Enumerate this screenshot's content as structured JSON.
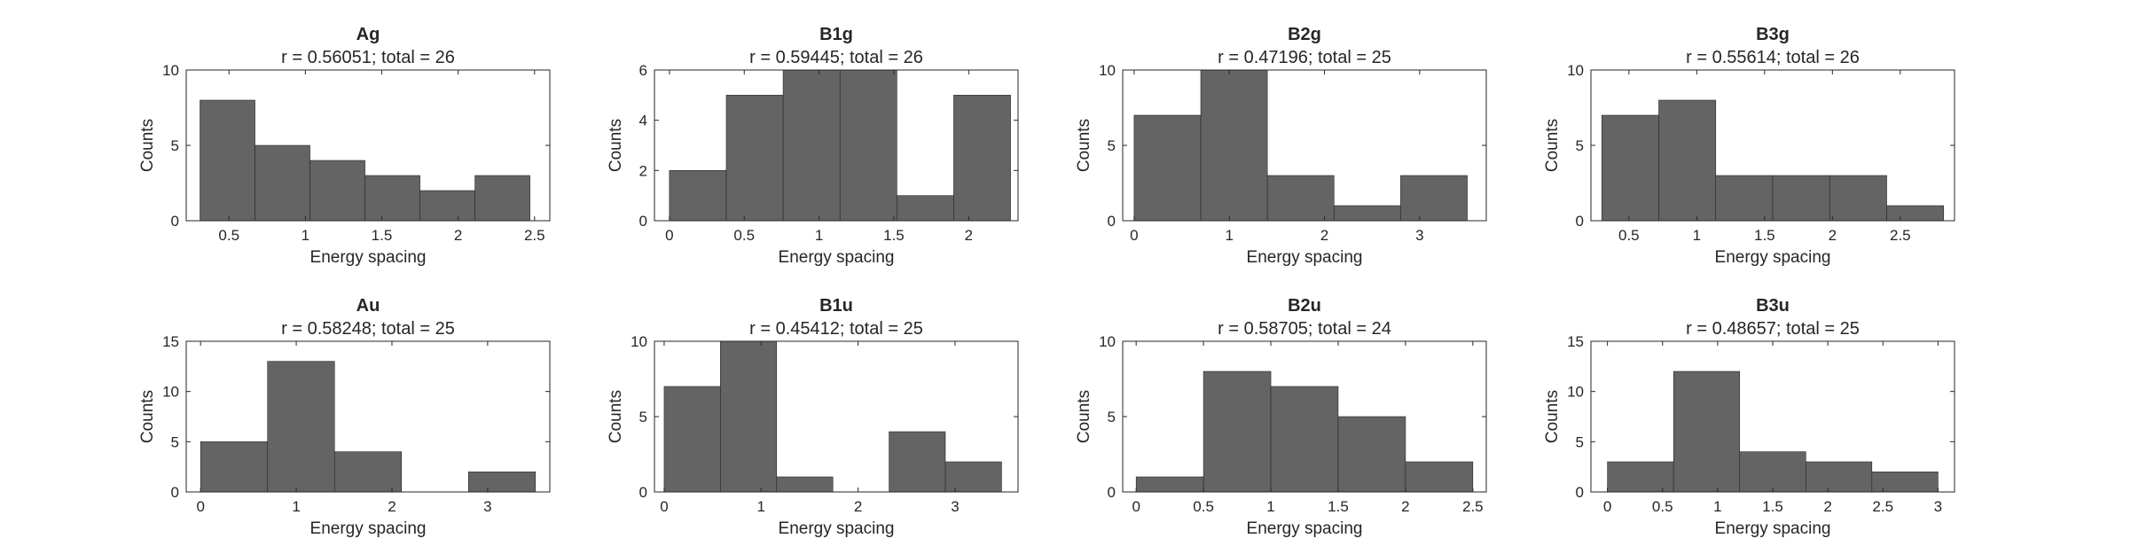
{
  "colors": {
    "bar": "#646464",
    "axes": "#262626",
    "background": "#ffffff"
  },
  "chart_data": [
    {
      "type": "bar",
      "title": "Ag",
      "subtitle": "r = 0.56051; total = 26",
      "xlabel": "Energy spacing",
      "ylabel": "Counts",
      "xlim": [
        0.22,
        2.6
      ],
      "ylim": [
        0,
        10
      ],
      "xticks": [
        0.5,
        1,
        1.5,
        2,
        2.5
      ],
      "xticklabels": [
        "0.5",
        "1",
        "1.5",
        "2",
        "2.5"
      ],
      "yticks": [
        0,
        5,
        10
      ],
      "yticklabels": [
        "0",
        "5",
        "10"
      ],
      "bins": [
        {
          "x0": 0.31,
          "x1": 0.67,
          "count": 8
        },
        {
          "x0": 0.67,
          "x1": 1.03,
          "count": 5
        },
        {
          "x0": 1.03,
          "x1": 1.39,
          "count": 4
        },
        {
          "x0": 1.39,
          "x1": 1.75,
          "count": 3
        },
        {
          "x0": 1.75,
          "x1": 2.11,
          "count": 2
        },
        {
          "x0": 2.11,
          "x1": 2.47,
          "count": 3
        }
      ]
    },
    {
      "type": "bar",
      "title": "B1g",
      "subtitle": "r = 0.59445; total = 26",
      "xlabel": "Energy spacing",
      "ylabel": "Counts",
      "xlim": [
        -0.1,
        2.33
      ],
      "ylim": [
        0,
        6
      ],
      "xticks": [
        0,
        0.5,
        1,
        1.5,
        2
      ],
      "xticklabels": [
        "0",
        "0.5",
        "1",
        "1.5",
        "2"
      ],
      "yticks": [
        0,
        2,
        4,
        6
      ],
      "yticklabels": [
        "0",
        "2",
        "4",
        "6"
      ],
      "bins": [
        {
          "x0": 0.0,
          "x1": 0.38,
          "count": 2
        },
        {
          "x0": 0.38,
          "x1": 0.76,
          "count": 5
        },
        {
          "x0": 0.76,
          "x1": 1.14,
          "count": 6
        },
        {
          "x0": 1.14,
          "x1": 1.52,
          "count": 6
        },
        {
          "x0": 1.52,
          "x1": 1.9,
          "count": 1
        },
        {
          "x0": 1.9,
          "x1": 2.28,
          "count": 5
        }
      ]
    },
    {
      "type": "bar",
      "title": "B2g",
      "subtitle": "r = 0.47196; total = 25",
      "xlabel": "Energy spacing",
      "ylabel": "Counts",
      "xlim": [
        -0.12,
        3.7
      ],
      "ylim": [
        0,
        10
      ],
      "xticks": [
        0,
        1,
        2,
        3
      ],
      "xticklabels": [
        "0",
        "1",
        "2",
        "3"
      ],
      "yticks": [
        0,
        5,
        10
      ],
      "yticklabels": [
        "0",
        "5",
        "10"
      ],
      "bins": [
        {
          "x0": 0.0,
          "x1": 0.7,
          "count": 7
        },
        {
          "x0": 0.7,
          "x1": 1.4,
          "count": 10
        },
        {
          "x0": 1.4,
          "x1": 2.1,
          "count": 3
        },
        {
          "x0": 2.1,
          "x1": 2.8,
          "count": 1
        },
        {
          "x0": 2.8,
          "x1": 3.5,
          "count": 3
        }
      ]
    },
    {
      "type": "bar",
      "title": "B3g",
      "subtitle": "r = 0.55614; total = 26",
      "xlabel": "Energy spacing",
      "ylabel": "Counts",
      "xlim": [
        0.22,
        2.9
      ],
      "ylim": [
        0,
        10
      ],
      "xticks": [
        0.5,
        1,
        1.5,
        2,
        2.5
      ],
      "xticklabels": [
        "0.5",
        "1",
        "1.5",
        "2",
        "2.5"
      ],
      "yticks": [
        0,
        5,
        10
      ],
      "yticklabels": [
        "0",
        "5",
        "10"
      ],
      "bins": [
        {
          "x0": 0.3,
          "x1": 0.72,
          "count": 7
        },
        {
          "x0": 0.72,
          "x1": 1.14,
          "count": 8
        },
        {
          "x0": 1.14,
          "x1": 1.56,
          "count": 3
        },
        {
          "x0": 1.56,
          "x1": 1.98,
          "count": 3
        },
        {
          "x0": 1.98,
          "x1": 2.4,
          "count": 3
        },
        {
          "x0": 2.4,
          "x1": 2.82,
          "count": 1
        }
      ]
    },
    {
      "type": "bar",
      "title": "Au",
      "subtitle": "r = 0.58248; total = 25",
      "xlabel": "Energy spacing",
      "ylabel": "Counts",
      "xlim": [
        -0.15,
        3.65
      ],
      "ylim": [
        0,
        15
      ],
      "xticks": [
        0,
        1,
        2,
        3
      ],
      "xticklabels": [
        "0",
        "1",
        "2",
        "3"
      ],
      "yticks": [
        0,
        5,
        10,
        15
      ],
      "yticklabels": [
        "0",
        "5",
        "10",
        "15"
      ],
      "bins": [
        {
          "x0": 0.0,
          "x1": 0.7,
          "count": 5
        },
        {
          "x0": 0.7,
          "x1": 1.4,
          "count": 13
        },
        {
          "x0": 1.4,
          "x1": 2.1,
          "count": 4
        },
        {
          "x0": 2.1,
          "x1": 2.8,
          "count": 0
        },
        {
          "x0": 2.8,
          "x1": 3.5,
          "count": 2
        }
      ]
    },
    {
      "type": "bar",
      "title": "B1u",
      "subtitle": "r = 0.45412; total = 25",
      "xlabel": "Energy spacing",
      "ylabel": "Counts",
      "xlim": [
        -0.1,
        3.65
      ],
      "ylim": [
        0,
        10
      ],
      "xticks": [
        0,
        1,
        2,
        3
      ],
      "xticklabels": [
        "0",
        "1",
        "2",
        "3"
      ],
      "yticks": [
        0,
        5,
        10
      ],
      "yticklabels": [
        "0",
        "5",
        "10"
      ],
      "bins": [
        {
          "x0": 0.0,
          "x1": 0.58,
          "count": 7
        },
        {
          "x0": 0.58,
          "x1": 1.16,
          "count": 10
        },
        {
          "x0": 1.16,
          "x1": 1.74,
          "count": 1
        },
        {
          "x0": 1.74,
          "x1": 2.32,
          "count": 0
        },
        {
          "x0": 2.32,
          "x1": 2.9,
          "count": 4
        },
        {
          "x0": 2.9,
          "x1": 3.48,
          "count": 2
        }
      ]
    },
    {
      "type": "bar",
      "title": "B2u",
      "subtitle": "r = 0.58705; total = 24",
      "xlabel": "Energy spacing",
      "ylabel": "Counts",
      "xlim": [
        -0.1,
        2.6
      ],
      "ylim": [
        0,
        10
      ],
      "xticks": [
        0,
        0.5,
        1,
        1.5,
        2,
        2.5
      ],
      "xticklabels": [
        "0",
        "0.5",
        "1",
        "1.5",
        "2",
        "2.5"
      ],
      "yticks": [
        0,
        5,
        10
      ],
      "yticklabels": [
        "0",
        "5",
        "10"
      ],
      "bins": [
        {
          "x0": 0.0,
          "x1": 0.5,
          "count": 1
        },
        {
          "x0": 0.5,
          "x1": 1.0,
          "count": 8
        },
        {
          "x0": 1.0,
          "x1": 1.5,
          "count": 7
        },
        {
          "x0": 1.5,
          "x1": 2.0,
          "count": 5
        },
        {
          "x0": 2.0,
          "x1": 2.5,
          "count": 2
        }
      ]
    },
    {
      "type": "bar",
      "title": "B3u",
      "subtitle": "r = 0.48657; total = 25",
      "xlabel": "Energy spacing",
      "ylabel": "Counts",
      "xlim": [
        -0.15,
        3.15
      ],
      "ylim": [
        0,
        15
      ],
      "xticks": [
        0,
        0.5,
        1,
        1.5,
        2,
        2.5,
        3
      ],
      "xticklabels": [
        "0",
        "0.5",
        "1",
        "1.5",
        "2",
        "2.5",
        "3"
      ],
      "yticks": [
        0,
        5,
        10,
        15
      ],
      "yticklabels": [
        "0",
        "5",
        "10",
        "15"
      ],
      "bins": [
        {
          "x0": 0.0,
          "x1": 0.6,
          "count": 3
        },
        {
          "x0": 0.6,
          "x1": 1.2,
          "count": 12
        },
        {
          "x0": 1.2,
          "x1": 1.8,
          "count": 4
        },
        {
          "x0": 1.8,
          "x1": 2.4,
          "count": 3
        },
        {
          "x0": 2.4,
          "x1": 3.0,
          "count": 2
        }
      ]
    }
  ]
}
